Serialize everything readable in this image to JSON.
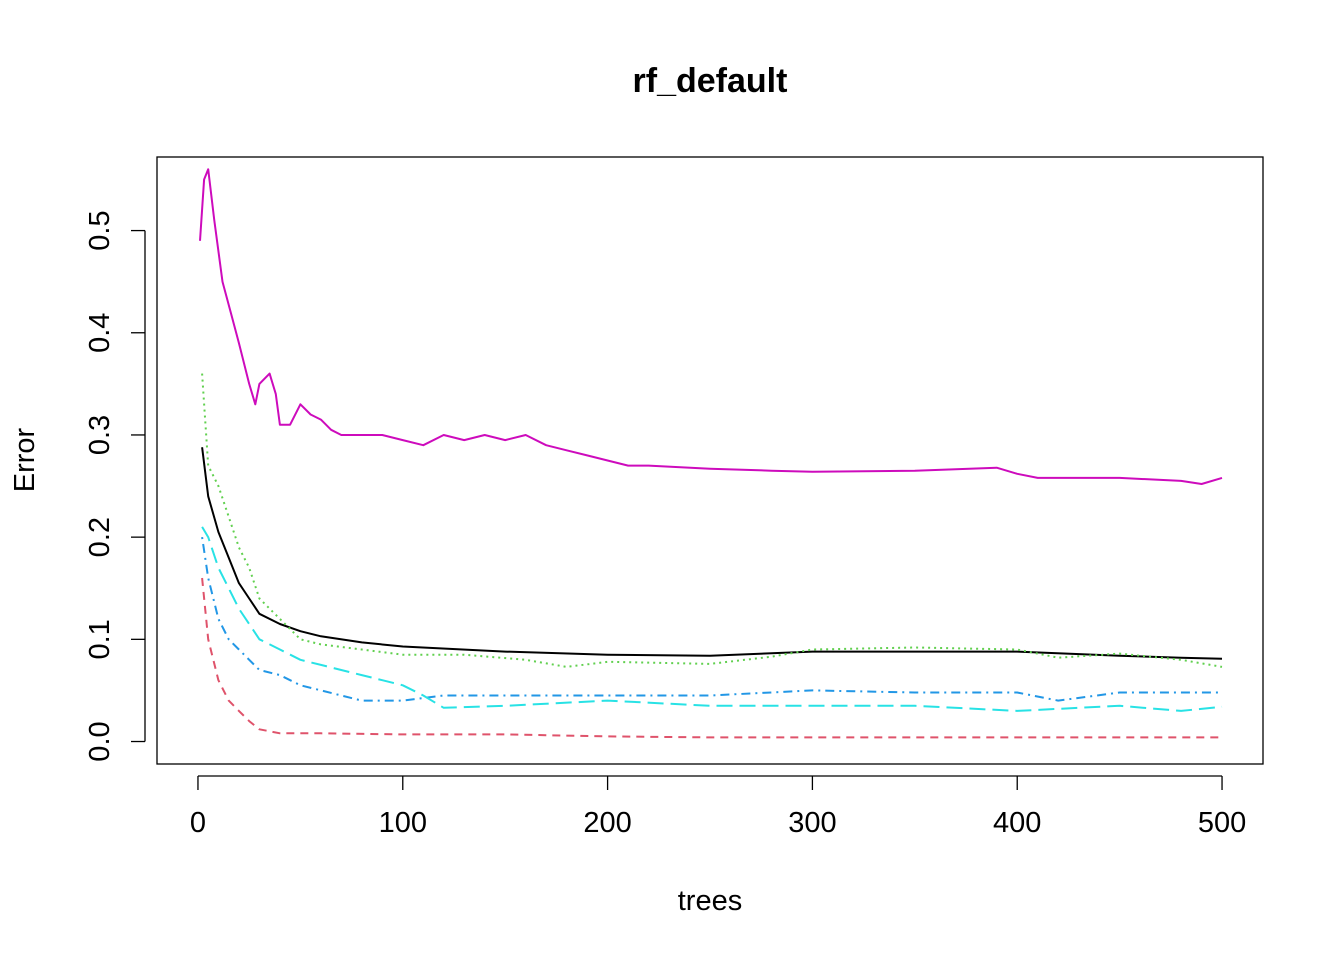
{
  "chart_data": {
    "type": "line",
    "title": "rf_default",
    "xlabel": "trees",
    "ylabel": "Error",
    "xlim": [
      0,
      500
    ],
    "ylim": [
      0.0,
      0.55
    ],
    "x_ticks": [
      0,
      100,
      200,
      300,
      400,
      500
    ],
    "x_tick_labels": [
      "0",
      "100",
      "200",
      "300",
      "400",
      "500"
    ],
    "y_ticks": [
      0.0,
      0.1,
      0.2,
      0.3,
      0.4,
      0.5
    ],
    "y_tick_labels": [
      "0.0",
      "0.1",
      "0.2",
      "0.3",
      "0.4",
      "0.5"
    ],
    "grid": false,
    "legend": "none",
    "series": [
      {
        "color": "#000000",
        "line_style": "solid",
        "x": [
          2,
          5,
          10,
          15,
          20,
          25,
          30,
          40,
          50,
          60,
          80,
          100,
          150,
          200,
          250,
          300,
          350,
          400,
          450,
          480,
          500
        ],
        "y": [
          0.288,
          0.24,
          0.205,
          0.18,
          0.155,
          0.14,
          0.125,
          0.115,
          0.108,
          0.103,
          0.097,
          0.093,
          0.088,
          0.085,
          0.084,
          0.088,
          0.088,
          0.088,
          0.084,
          0.082,
          0.081
        ]
      },
      {
        "color": "#DF536B",
        "line_style": "dashed",
        "x": [
          2,
          5,
          10,
          15,
          20,
          25,
          30,
          40,
          60,
          100,
          150,
          200,
          250,
          300,
          400,
          500
        ],
        "y": [
          0.16,
          0.1,
          0.06,
          0.04,
          0.03,
          0.02,
          0.012,
          0.008,
          0.008,
          0.007,
          0.007,
          0.005,
          0.004,
          0.004,
          0.004,
          0.004
        ]
      },
      {
        "color": "#61D04F",
        "line_style": "dotted",
        "x": [
          2,
          5,
          10,
          15,
          20,
          25,
          30,
          40,
          50,
          60,
          80,
          100,
          130,
          160,
          180,
          200,
          250,
          280,
          300,
          350,
          400,
          420,
          450,
          480,
          500
        ],
        "y": [
          0.36,
          0.27,
          0.25,
          0.22,
          0.19,
          0.17,
          0.14,
          0.12,
          0.1,
          0.095,
          0.09,
          0.085,
          0.085,
          0.08,
          0.073,
          0.078,
          0.076,
          0.083,
          0.09,
          0.092,
          0.09,
          0.082,
          0.086,
          0.08,
          0.073
        ]
      },
      {
        "color": "#2297E6",
        "line_style": "dotdash",
        "x": [
          2,
          5,
          10,
          15,
          20,
          25,
          30,
          40,
          50,
          60,
          80,
          100,
          120,
          150,
          200,
          250,
          300,
          350,
          400,
          420,
          450,
          480,
          500
        ],
        "y": [
          0.2,
          0.16,
          0.12,
          0.1,
          0.09,
          0.08,
          0.07,
          0.065,
          0.055,
          0.05,
          0.04,
          0.04,
          0.045,
          0.045,
          0.045,
          0.045,
          0.05,
          0.048,
          0.048,
          0.04,
          0.048,
          0.048,
          0.048
        ]
      },
      {
        "color": "#28E2E5",
        "line_style": "longdash",
        "x": [
          2,
          5,
          10,
          15,
          20,
          25,
          30,
          40,
          50,
          60,
          80,
          100,
          110,
          120,
          150,
          200,
          250,
          300,
          350,
          400,
          450,
          480,
          500
        ],
        "y": [
          0.21,
          0.2,
          0.17,
          0.15,
          0.13,
          0.115,
          0.1,
          0.09,
          0.08,
          0.075,
          0.065,
          0.055,
          0.045,
          0.033,
          0.035,
          0.04,
          0.035,
          0.035,
          0.035,
          0.03,
          0.035,
          0.03,
          0.034
        ]
      },
      {
        "color": "#CD0BBC",
        "line_style": "solid",
        "x": [
          1,
          3,
          5,
          8,
          12,
          16,
          20,
          25,
          28,
          30,
          35,
          38,
          40,
          45,
          50,
          55,
          60,
          65,
          70,
          80,
          90,
          100,
          110,
          120,
          130,
          140,
          150,
          160,
          170,
          180,
          190,
          200,
          210,
          220,
          250,
          280,
          300,
          350,
          390,
          400,
          410,
          450,
          480,
          490,
          500
        ],
        "y": [
          0.49,
          0.55,
          0.56,
          0.51,
          0.45,
          0.42,
          0.39,
          0.35,
          0.33,
          0.35,
          0.36,
          0.34,
          0.31,
          0.31,
          0.33,
          0.32,
          0.315,
          0.305,
          0.3,
          0.3,
          0.3,
          0.295,
          0.29,
          0.3,
          0.295,
          0.3,
          0.295,
          0.3,
          0.29,
          0.285,
          0.28,
          0.275,
          0.27,
          0.27,
          0.267,
          0.265,
          0.264,
          0.265,
          0.268,
          0.262,
          0.258,
          0.258,
          0.255,
          0.252,
          0.258
        ]
      }
    ]
  }
}
